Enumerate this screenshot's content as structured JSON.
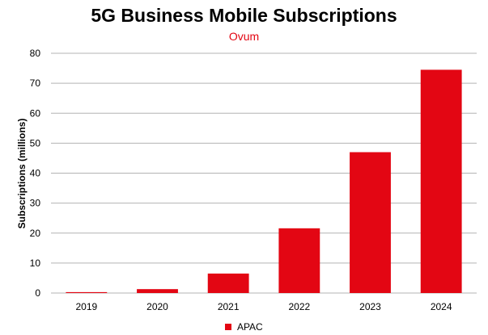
{
  "chart_data": {
    "type": "bar",
    "title": "5G Business Mobile Subscriptions",
    "subtitle": "Ovum",
    "xlabel": "",
    "ylabel": "Subscriptions  (millions)",
    "categories": [
      "2019",
      "2020",
      "2021",
      "2022",
      "2023",
      "2024"
    ],
    "series": [
      {
        "name": "APAC",
        "values": [
          0.3,
          1.3,
          6.5,
          21.6,
          47.0,
          74.5
        ]
      }
    ],
    "ylim": [
      0,
      80
    ],
    "yticks": [
      0,
      10,
      20,
      30,
      40,
      50,
      60,
      70,
      80
    ],
    "grid": true,
    "legend_position": "bottom",
    "colors": {
      "bar": "#e30613",
      "grid": "#b3b3b3",
      "subtitle": "#e30613"
    }
  }
}
